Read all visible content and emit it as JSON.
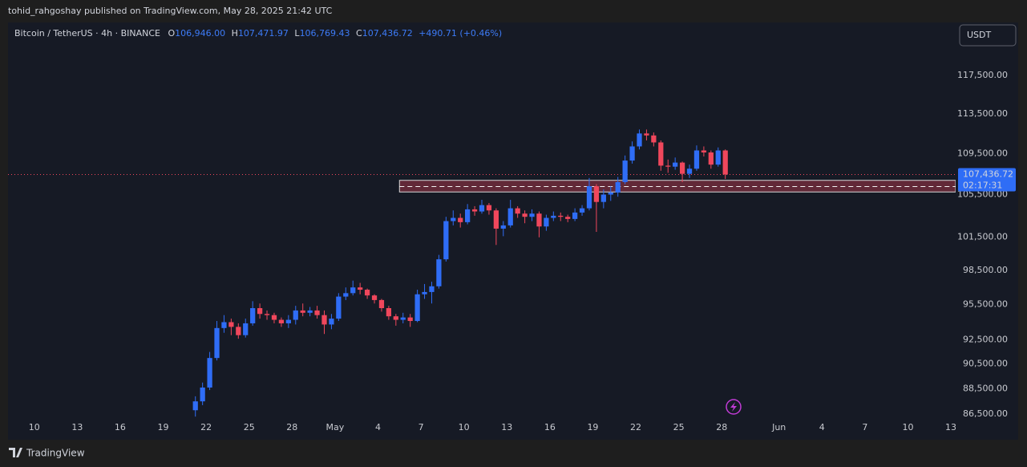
{
  "header": {
    "attribution": "tohid_rahgoshay published on TradingView.com, May 28, 2025 21:42 UTC",
    "symbol": "Bitcoin / TetherUS · 4h · BINANCE",
    "ohlc": [
      {
        "key": "O",
        "value": "106,946.00"
      },
      {
        "key": "H",
        "value": "107,471.97"
      },
      {
        "key": "L",
        "value": "106,769.43"
      },
      {
        "key": "C",
        "value": "107,436.72"
      }
    ],
    "change": "+490.71 (+0.46%)",
    "currency": "USDT"
  },
  "footer": {
    "brand": "TradingView"
  },
  "chart_data": {
    "type": "candlestick",
    "log_scale": true,
    "up_color": "#2f6df6",
    "down_color": "#f0475c",
    "x": [
      "04-21 00:00",
      "04-21 12:00",
      "04-22 00:00",
      "04-22 12:00",
      "04-23 00:00",
      "04-23 12:00",
      "04-24 00:00",
      "04-24 12:00",
      "04-25 00:00",
      "04-25 12:00",
      "04-26 00:00",
      "04-26 12:00",
      "04-27 00:00",
      "04-27 12:00",
      "04-28 00:00",
      "04-28 12:00",
      "04-29 00:00",
      "04-29 12:00",
      "04-30 00:00",
      "04-30 12:00",
      "05-01 00:00",
      "05-01 12:00",
      "05-02 00:00",
      "05-02 12:00",
      "05-03 00:00",
      "05-03 12:00",
      "05-04 00:00",
      "05-04 12:00",
      "05-05 00:00",
      "05-05 12:00",
      "05-06 00:00",
      "05-06 12:00",
      "05-07 00:00",
      "05-07 12:00",
      "05-08 00:00",
      "05-08 12:00",
      "05-09 00:00",
      "05-09 12:00",
      "05-10 00:00",
      "05-10 12:00",
      "05-11 00:00",
      "05-11 12:00",
      "05-12 00:00",
      "05-12 12:00",
      "05-13 00:00",
      "05-13 12:00",
      "05-14 00:00",
      "05-14 12:00",
      "05-15 00:00",
      "05-15 12:00",
      "05-16 00:00",
      "05-16 12:00",
      "05-17 00:00",
      "05-17 12:00",
      "05-18 00:00",
      "05-18 12:00",
      "05-19 00:00",
      "05-19 12:00",
      "05-20 00:00",
      "05-20 12:00",
      "05-21 00:00",
      "05-21 12:00",
      "05-22 00:00",
      "05-22 12:00",
      "05-23 00:00",
      "05-23 12:00",
      "05-24 00:00",
      "05-24 12:00",
      "05-25 00:00",
      "05-25 12:00",
      "05-26 00:00",
      "05-26 12:00",
      "05-27 00:00",
      "05-27 12:00",
      "05-28 00:00"
    ],
    "open": [
      86800,
      87500,
      88600,
      91000,
      93500,
      94000,
      93600,
      92900,
      93900,
      95200,
      94700,
      94600,
      94200,
      93900,
      94200,
      95000,
      94800,
      95000,
      94600,
      93800,
      94300,
      96200,
      96500,
      97000,
      96800,
      96300,
      95900,
      95200,
      94500,
      94200,
      94400,
      94100,
      96400,
      96600,
      97100,
      99500,
      103000,
      103300,
      102900,
      104100,
      103900,
      104500,
      104000,
      102300,
      102600,
      104200,
      103700,
      103400,
      103700,
      102500,
      103300,
      103500,
      103400,
      103200,
      103800,
      104200,
      106300,
      104800,
      105500,
      105700,
      106700,
      108800,
      110200,
      111500,
      111300,
      110600,
      108300,
      108200,
      108600,
      107500,
      108000,
      109800,
      109600,
      108400,
      109800
    ],
    "high": [
      87900,
      89000,
      91500,
      94100,
      94600,
      94300,
      93900,
      94300,
      95800,
      95600,
      95000,
      94800,
      94400,
      94600,
      95400,
      95600,
      95300,
      95400,
      95000,
      94700,
      96500,
      97000,
      97600,
      97400,
      96900,
      96400,
      96000,
      95400,
      94700,
      94800,
      94700,
      96800,
      97300,
      97500,
      99900,
      103400,
      104000,
      103700,
      104600,
      104400,
      105000,
      104700,
      104200,
      103000,
      105000,
      104400,
      104000,
      104100,
      103900,
      103600,
      103900,
      103800,
      103600,
      104200,
      104500,
      107100,
      106500,
      106000,
      106300,
      107200,
      109300,
      110700,
      111900,
      111900,
      111600,
      110800,
      108900,
      109100,
      108700,
      108400,
      110300,
      110200,
      109800,
      110100,
      109900
    ],
    "low": [
      86300,
      87200,
      88400,
      90800,
      93100,
      92900,
      92600,
      92700,
      93700,
      94300,
      94200,
      93900,
      93600,
      93500,
      93800,
      94500,
      94500,
      94300,
      93000,
      93400,
      94100,
      95900,
      96300,
      96400,
      96000,
      95600,
      94900,
      94200,
      93700,
      93900,
      93600,
      94000,
      96000,
      95600,
      96900,
      99300,
      102600,
      102400,
      102700,
      103500,
      103700,
      103600,
      100800,
      101600,
      102400,
      103300,
      102800,
      103000,
      101500,
      102100,
      103000,
      103000,
      102900,
      103000,
      103500,
      104000,
      102000,
      104200,
      104900,
      105300,
      106500,
      108500,
      109900,
      110800,
      110200,
      107800,
      107600,
      107900,
      106700,
      107100,
      107800,
      109200,
      108000,
      108200,
      107000
    ],
    "close": [
      87500,
      88600,
      91000,
      93500,
      94000,
      93600,
      92900,
      93900,
      95200,
      94700,
      94600,
      94200,
      93900,
      94200,
      95000,
      94800,
      95000,
      94600,
      93800,
      94300,
      96200,
      96500,
      97000,
      96800,
      96300,
      95900,
      95200,
      94500,
      94200,
      94400,
      94100,
      96400,
      96600,
      97100,
      99500,
      103000,
      103300,
      102900,
      104100,
      103900,
      104500,
      104000,
      102300,
      102600,
      104200,
      103700,
      103400,
      103700,
      102500,
      103300,
      103500,
      103400,
      103200,
      103800,
      104200,
      106300,
      104800,
      105500,
      105700,
      106700,
      108800,
      110200,
      111500,
      111300,
      110600,
      108300,
      108200,
      108600,
      107500,
      108000,
      109800,
      109600,
      108400,
      109800,
      107437
    ],
    "xlim": [
      "04-08 04:00",
      "06-13 08:00"
    ],
    "xticks": [
      {
        "value": "04-10",
        "label": "10"
      },
      {
        "value": "04-13",
        "label": "13"
      },
      {
        "value": "04-16",
        "label": "16"
      },
      {
        "value": "04-19",
        "label": "19"
      },
      {
        "value": "04-22",
        "label": "22"
      },
      {
        "value": "04-25",
        "label": "25"
      },
      {
        "value": "04-28",
        "label": "28"
      },
      {
        "value": "05-01",
        "label": "May"
      },
      {
        "value": "05-04",
        "label": "4"
      },
      {
        "value": "05-07",
        "label": "7"
      },
      {
        "value": "05-10",
        "label": "10"
      },
      {
        "value": "05-13",
        "label": "13"
      },
      {
        "value": "05-16",
        "label": "16"
      },
      {
        "value": "05-19",
        "label": "19"
      },
      {
        "value": "05-22",
        "label": "22"
      },
      {
        "value": "05-25",
        "label": "25"
      },
      {
        "value": "05-28",
        "label": "28"
      },
      {
        "value": "06-01",
        "label": "Jun"
      },
      {
        "value": "06-04",
        "label": "4"
      },
      {
        "value": "06-07",
        "label": "7"
      },
      {
        "value": "06-10",
        "label": "10"
      },
      {
        "value": "06-13",
        "label": "13"
      }
    ],
    "ylim": [
      86250,
      123100
    ],
    "yticks": [
      {
        "value": 86500,
        "label": "86,500.00"
      },
      {
        "value": 88500,
        "label": "88,500.00"
      },
      {
        "value": 90500,
        "label": "90,500.00"
      },
      {
        "value": 92500,
        "label": "92,500.00"
      },
      {
        "value": 95500,
        "label": "95,500.00"
      },
      {
        "value": 98500,
        "label": "98,500.00"
      },
      {
        "value": 101500,
        "label": "101,500.00"
      },
      {
        "value": 105500,
        "label": "105,500.00"
      },
      {
        "value": 109500,
        "label": "109,500.00"
      },
      {
        "value": 113500,
        "label": "113,500.00"
      },
      {
        "value": 117500,
        "label": "117,500.00"
      }
    ],
    "zone": {
      "x": [
        "05-05 12:00",
        "06-13 08:00"
      ],
      "ylim": [
        105750,
        106870
      ],
      "line": 106270,
      "color": "#f0475c"
    },
    "last_price": {
      "value": 107436.72,
      "label": "107,436.72",
      "countdown": "02:17:31",
      "color": "#2f6df6"
    }
  }
}
